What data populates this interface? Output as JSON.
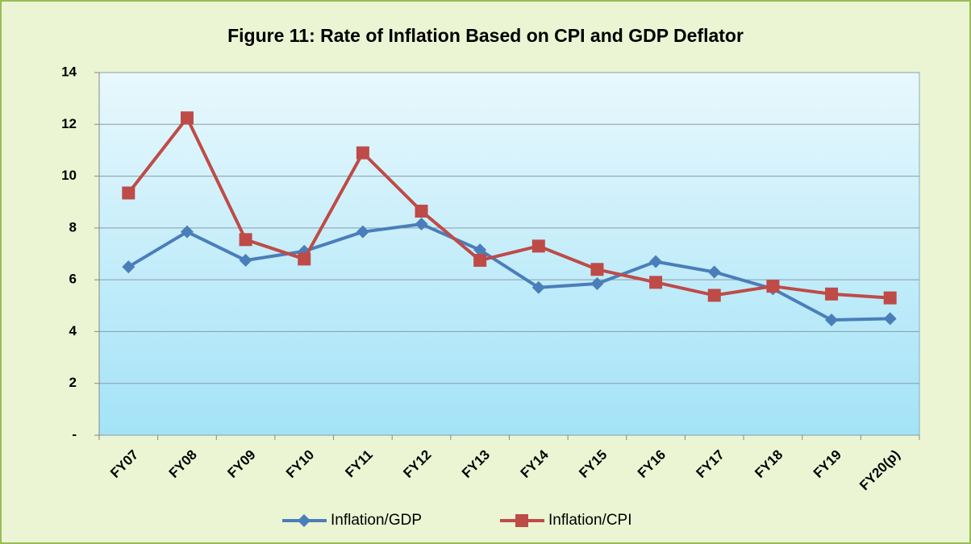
{
  "chart_data": {
    "type": "line",
    "title": "Figure 11: Rate of Inflation Based on CPI and GDP Deflator",
    "categories": [
      "FY07",
      "FY08",
      "FY09",
      "FY10",
      "FY11",
      "FY12",
      "FY13",
      "FY14",
      "FY15",
      "FY16",
      "FY17",
      "FY18",
      "FY19",
      "FY20(p)"
    ],
    "series": [
      {
        "name": "Inflation/GDP",
        "color": "#4a7ebb",
        "marker": "diamond",
        "values": [
          6.5,
          7.85,
          6.75,
          7.1,
          7.85,
          8.15,
          7.15,
          5.7,
          5.85,
          6.7,
          6.3,
          5.65,
          4.45,
          4.5
        ]
      },
      {
        "name": "Inflation/CPI",
        "color": "#be4b48",
        "marker": "square",
        "values": [
          9.35,
          12.25,
          7.55,
          6.8,
          10.9,
          8.65,
          6.75,
          7.3,
          6.4,
          5.9,
          5.4,
          5.75,
          5.45,
          5.3
        ]
      }
    ],
    "ylim": [
      0,
      14
    ],
    "yticks": [
      {
        "value": 0,
        "label": "-"
      },
      2,
      4,
      6,
      8,
      10,
      12,
      14
    ],
    "grid": true,
    "legend": "bottom"
  }
}
